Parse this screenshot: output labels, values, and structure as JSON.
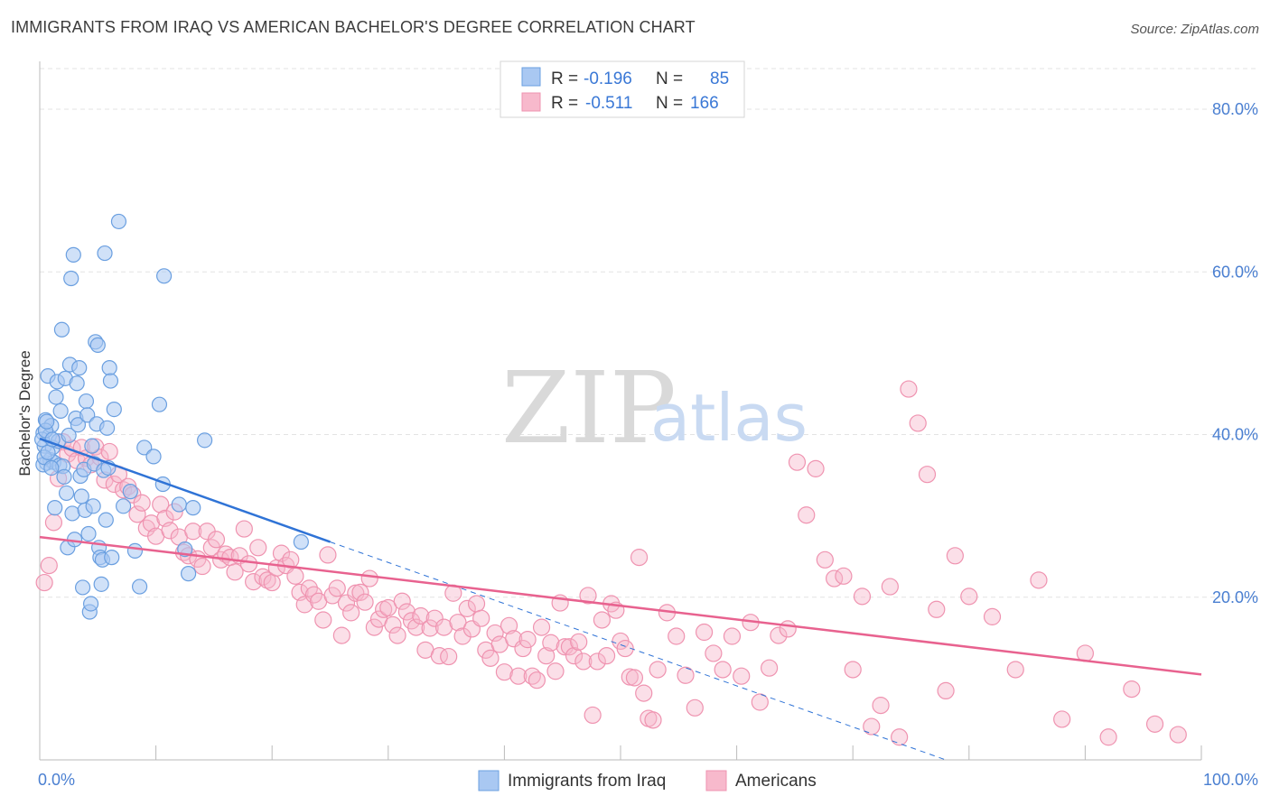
{
  "title": "IMMIGRANTS FROM IRAQ VS AMERICAN BACHELOR'S DEGREE CORRELATION CHART",
  "source": "Source: ZipAtlas.com",
  "watermark": {
    "zip": "ZIP",
    "atlas": "atlas"
  },
  "colors": {
    "blue_fill": "#a9c8f2",
    "blue_stroke": "#6a9fe0",
    "blue_line": "#2f73d6",
    "pink_fill": "#f7b9cc",
    "pink_stroke": "#ef93b0",
    "pink_line": "#e8628f",
    "grid": "#e3e3e3",
    "tick_label": "#4a7fd1"
  },
  "legend": {
    "rows": [
      {
        "r_label": "R = ",
        "r_value": "-0.196",
        "n_label": "N = ",
        "n_value": "85"
      },
      {
        "r_label": "R = ",
        "r_value": "-0.511",
        "n_label": "N = ",
        "n_value": "166"
      }
    ]
  },
  "chart_data": {
    "type": "scatter",
    "xlabel": "",
    "ylabel": "Bachelor's Degree",
    "xlim": [
      0,
      100
    ],
    "ylim": [
      0,
      85
    ],
    "y_ticks": [
      20,
      40,
      60,
      80
    ],
    "y_tick_labels": [
      "20.0%",
      "40.0%",
      "60.0%",
      "80.0%"
    ],
    "x_tick_labels": [
      "0.0%",
      "100.0%"
    ],
    "series": [
      {
        "name": "Immigrants from Iraq",
        "trend": {
          "x0": 0,
          "y0": 39.5,
          "x1": 25,
          "y1": 26.8,
          "dash_to_x": 78,
          "dash_to_y": 0
        },
        "points": [
          [
            0.3,
            40.2
          ],
          [
            0.4,
            38.6
          ],
          [
            0.5,
            41.8
          ],
          [
            0.6,
            36.5
          ],
          [
            0.7,
            47.2
          ],
          [
            0.8,
            39.8
          ],
          [
            0.9,
            36.9
          ],
          [
            1.0,
            41.1
          ],
          [
            1.1,
            38.4
          ],
          [
            1.2,
            36.6
          ],
          [
            1.3,
            31.0
          ],
          [
            1.4,
            44.6
          ],
          [
            1.5,
            46.5
          ],
          [
            1.6,
            39.2
          ],
          [
            1.7,
            36.2
          ],
          [
            1.8,
            42.9
          ],
          [
            1.9,
            52.9
          ],
          [
            2.0,
            36.1
          ],
          [
            2.1,
            34.8
          ],
          [
            2.2,
            46.9
          ],
          [
            2.3,
            32.8
          ],
          [
            2.4,
            26.1
          ],
          [
            2.5,
            39.9
          ],
          [
            2.6,
            48.6
          ],
          [
            2.7,
            59.2
          ],
          [
            2.8,
            30.3
          ],
          [
            2.9,
            62.1
          ],
          [
            3.0,
            27.1
          ],
          [
            3.1,
            42.0
          ],
          [
            3.2,
            46.3
          ],
          [
            3.3,
            41.2
          ],
          [
            3.4,
            48.2
          ],
          [
            3.5,
            34.9
          ],
          [
            3.6,
            32.4
          ],
          [
            3.7,
            21.2
          ],
          [
            3.8,
            35.7
          ],
          [
            3.9,
            30.7
          ],
          [
            4.0,
            44.1
          ],
          [
            4.1,
            42.4
          ],
          [
            4.2,
            27.8
          ],
          [
            4.3,
            18.2
          ],
          [
            4.4,
            19.2
          ],
          [
            4.5,
            38.6
          ],
          [
            4.6,
            31.2
          ],
          [
            4.7,
            36.4
          ],
          [
            4.8,
            51.4
          ],
          [
            4.9,
            41.3
          ],
          [
            5.0,
            51.0
          ],
          [
            5.1,
            26.1
          ],
          [
            5.2,
            24.9
          ],
          [
            5.3,
            21.6
          ],
          [
            5.4,
            24.6
          ],
          [
            5.5,
            35.6
          ],
          [
            5.6,
            62.3
          ],
          [
            5.7,
            29.5
          ],
          [
            5.8,
            40.8
          ],
          [
            5.9,
            35.9
          ],
          [
            6.0,
            48.2
          ],
          [
            6.1,
            46.6
          ],
          [
            6.2,
            24.9
          ],
          [
            6.4,
            43.1
          ],
          [
            6.8,
            66.2
          ],
          [
            7.2,
            31.2
          ],
          [
            7.8,
            33.0
          ],
          [
            8.2,
            25.7
          ],
          [
            8.6,
            21.3
          ],
          [
            9.0,
            38.4
          ],
          [
            9.8,
            37.3
          ],
          [
            10.3,
            43.7
          ],
          [
            10.6,
            33.9
          ],
          [
            10.7,
            59.5
          ],
          [
            12.0,
            31.4
          ],
          [
            12.5,
            25.9
          ],
          [
            12.8,
            22.9
          ],
          [
            13.2,
            31.0
          ],
          [
            14.2,
            39.3
          ],
          [
            22.5,
            26.8
          ],
          [
            0.2,
            39.4
          ],
          [
            0.3,
            36.3
          ],
          [
            0.4,
            37.2
          ],
          [
            0.5,
            40.5
          ],
          [
            0.6,
            41.6
          ],
          [
            0.7,
            37.8
          ],
          [
            1.0,
            35.9
          ],
          [
            1.1,
            39.4
          ]
        ]
      },
      {
        "name": "Americans",
        "trend": {
          "x0": 0,
          "y0": 27.4,
          "x1": 100,
          "y1": 10.5
        },
        "points": [
          [
            0.4,
            21.8
          ],
          [
            0.8,
            23.9
          ],
          [
            1.2,
            29.2
          ],
          [
            1.6,
            34.6
          ],
          [
            2.0,
            39.1
          ],
          [
            2.4,
            37.6
          ],
          [
            2.8,
            38.3
          ],
          [
            3.2,
            36.8
          ],
          [
            3.6,
            38.4
          ],
          [
            4.0,
            37.1
          ],
          [
            4.4,
            36.3
          ],
          [
            4.8,
            38.5
          ],
          [
            5.2,
            37.2
          ],
          [
            5.6,
            34.4
          ],
          [
            6.0,
            37.9
          ],
          [
            6.4,
            33.9
          ],
          [
            6.8,
            35.1
          ],
          [
            7.2,
            33.2
          ],
          [
            7.6,
            33.6
          ],
          [
            8.0,
            32.6
          ],
          [
            8.4,
            30.2
          ],
          [
            8.8,
            31.6
          ],
          [
            9.2,
            28.5
          ],
          [
            9.6,
            29.1
          ],
          [
            10.0,
            27.5
          ],
          [
            10.4,
            31.4
          ],
          [
            10.8,
            29.7
          ],
          [
            11.2,
            28.2
          ],
          [
            11.6,
            30.5
          ],
          [
            12.0,
            27.4
          ],
          [
            12.4,
            25.5
          ],
          [
            12.8,
            25.1
          ],
          [
            13.2,
            28.1
          ],
          [
            13.6,
            24.7
          ],
          [
            14.0,
            23.8
          ],
          [
            14.4,
            28.1
          ],
          [
            14.8,
            26.1
          ],
          [
            15.2,
            27.1
          ],
          [
            15.6,
            24.6
          ],
          [
            16.0,
            25.3
          ],
          [
            16.4,
            24.9
          ],
          [
            16.8,
            23.1
          ],
          [
            17.2,
            25.1
          ],
          [
            17.6,
            28.4
          ],
          [
            18.0,
            24.1
          ],
          [
            18.4,
            21.9
          ],
          [
            18.8,
            26.1
          ],
          [
            19.2,
            22.5
          ],
          [
            19.6,
            22.1
          ],
          [
            20.0,
            21.8
          ],
          [
            20.4,
            23.6
          ],
          [
            20.8,
            25.4
          ],
          [
            21.2,
            23.9
          ],
          [
            21.6,
            24.6
          ],
          [
            22.0,
            22.6
          ],
          [
            22.4,
            20.6
          ],
          [
            22.8,
            19.1
          ],
          [
            23.2,
            21.1
          ],
          [
            23.6,
            20.3
          ],
          [
            24.0,
            19.5
          ],
          [
            24.4,
            17.2
          ],
          [
            24.8,
            25.2
          ],
          [
            25.2,
            20.2
          ],
          [
            25.6,
            21.1
          ],
          [
            26.0,
            15.3
          ],
          [
            26.4,
            19.3
          ],
          [
            26.8,
            18.1
          ],
          [
            27.2,
            20.5
          ],
          [
            27.6,
            20.6
          ],
          [
            28.0,
            19.4
          ],
          [
            28.4,
            22.3
          ],
          [
            28.8,
            16.3
          ],
          [
            29.2,
            17.3
          ],
          [
            29.6,
            18.5
          ],
          [
            30.0,
            18.7
          ],
          [
            30.4,
            16.6
          ],
          [
            30.8,
            15.3
          ],
          [
            31.2,
            19.5
          ],
          [
            31.6,
            18.2
          ],
          [
            32.0,
            17.1
          ],
          [
            32.4,
            16.3
          ],
          [
            32.8,
            17.7
          ],
          [
            33.2,
            13.5
          ],
          [
            33.6,
            16.2
          ],
          [
            34.0,
            17.4
          ],
          [
            34.4,
            12.8
          ],
          [
            34.8,
            16.3
          ],
          [
            35.2,
            12.7
          ],
          [
            35.6,
            20.5
          ],
          [
            36.0,
            16.9
          ],
          [
            36.4,
            15.2
          ],
          [
            36.8,
            18.6
          ],
          [
            37.2,
            16.1
          ],
          [
            37.6,
            19.2
          ],
          [
            38.0,
            17.4
          ],
          [
            38.4,
            13.5
          ],
          [
            38.8,
            12.5
          ],
          [
            39.2,
            15.6
          ],
          [
            39.6,
            14.2
          ],
          [
            40.0,
            10.8
          ],
          [
            40.4,
            16.5
          ],
          [
            40.8,
            14.9
          ],
          [
            41.2,
            10.3
          ],
          [
            41.6,
            13.7
          ],
          [
            42.0,
            14.8
          ],
          [
            42.4,
            10.3
          ],
          [
            42.8,
            9.8
          ],
          [
            43.2,
            16.3
          ],
          [
            43.6,
            12.8
          ],
          [
            44.0,
            14.4
          ],
          [
            44.4,
            10.9
          ],
          [
            44.8,
            19.3
          ],
          [
            45.2,
            13.9
          ],
          [
            45.6,
            13.9
          ],
          [
            46.0,
            12.8
          ],
          [
            46.4,
            14.5
          ],
          [
            46.8,
            12.1
          ],
          [
            47.2,
            20.2
          ],
          [
            47.6,
            5.5
          ],
          [
            48.0,
            12.1
          ],
          [
            48.4,
            17.2
          ],
          [
            48.8,
            12.8
          ],
          [
            49.2,
            19.2
          ],
          [
            49.6,
            18.4
          ],
          [
            50.0,
            14.6
          ],
          [
            50.4,
            13.7
          ],
          [
            50.8,
            10.2
          ],
          [
            51.2,
            10.1
          ],
          [
            51.6,
            24.9
          ],
          [
            52.0,
            8.2
          ],
          [
            52.4,
            5.1
          ],
          [
            52.8,
            4.9
          ],
          [
            53.2,
            11.1
          ],
          [
            54.0,
            18.1
          ],
          [
            54.8,
            15.2
          ],
          [
            55.6,
            10.4
          ],
          [
            56.4,
            6.4
          ],
          [
            57.2,
            15.7
          ],
          [
            58.0,
            13.1
          ],
          [
            58.8,
            11.1
          ],
          [
            59.6,
            15.2
          ],
          [
            60.4,
            10.3
          ],
          [
            61.2,
            16.9
          ],
          [
            62.0,
            7.1
          ],
          [
            62.8,
            11.3
          ],
          [
            63.6,
            15.3
          ],
          [
            64.4,
            16.1
          ],
          [
            65.2,
            36.6
          ],
          [
            66.0,
            30.1
          ],
          [
            66.8,
            35.8
          ],
          [
            67.6,
            24.6
          ],
          [
            68.4,
            22.3
          ],
          [
            69.2,
            22.6
          ],
          [
            70.0,
            11.1
          ],
          [
            70.8,
            20.1
          ],
          [
            71.6,
            4.1
          ],
          [
            72.4,
            6.7
          ],
          [
            73.2,
            21.3
          ],
          [
            74.0,
            2.8
          ],
          [
            74.8,
            45.6
          ],
          [
            75.6,
            41.4
          ],
          [
            76.4,
            35.1
          ],
          [
            77.2,
            18.5
          ],
          [
            78.0,
            8.5
          ],
          [
            78.8,
            25.1
          ],
          [
            80.0,
            20.1
          ],
          [
            82.0,
            17.6
          ],
          [
            84.0,
            11.1
          ],
          [
            86.0,
            22.1
          ],
          [
            88.0,
            5.0
          ],
          [
            90.0,
            13.1
          ],
          [
            92.0,
            2.8
          ],
          [
            94.0,
            8.7
          ],
          [
            96.0,
            4.4
          ],
          [
            98.0,
            3.1
          ]
        ]
      }
    ]
  },
  "bottom_legend": [
    "Immigrants from Iraq",
    "Americans"
  ]
}
